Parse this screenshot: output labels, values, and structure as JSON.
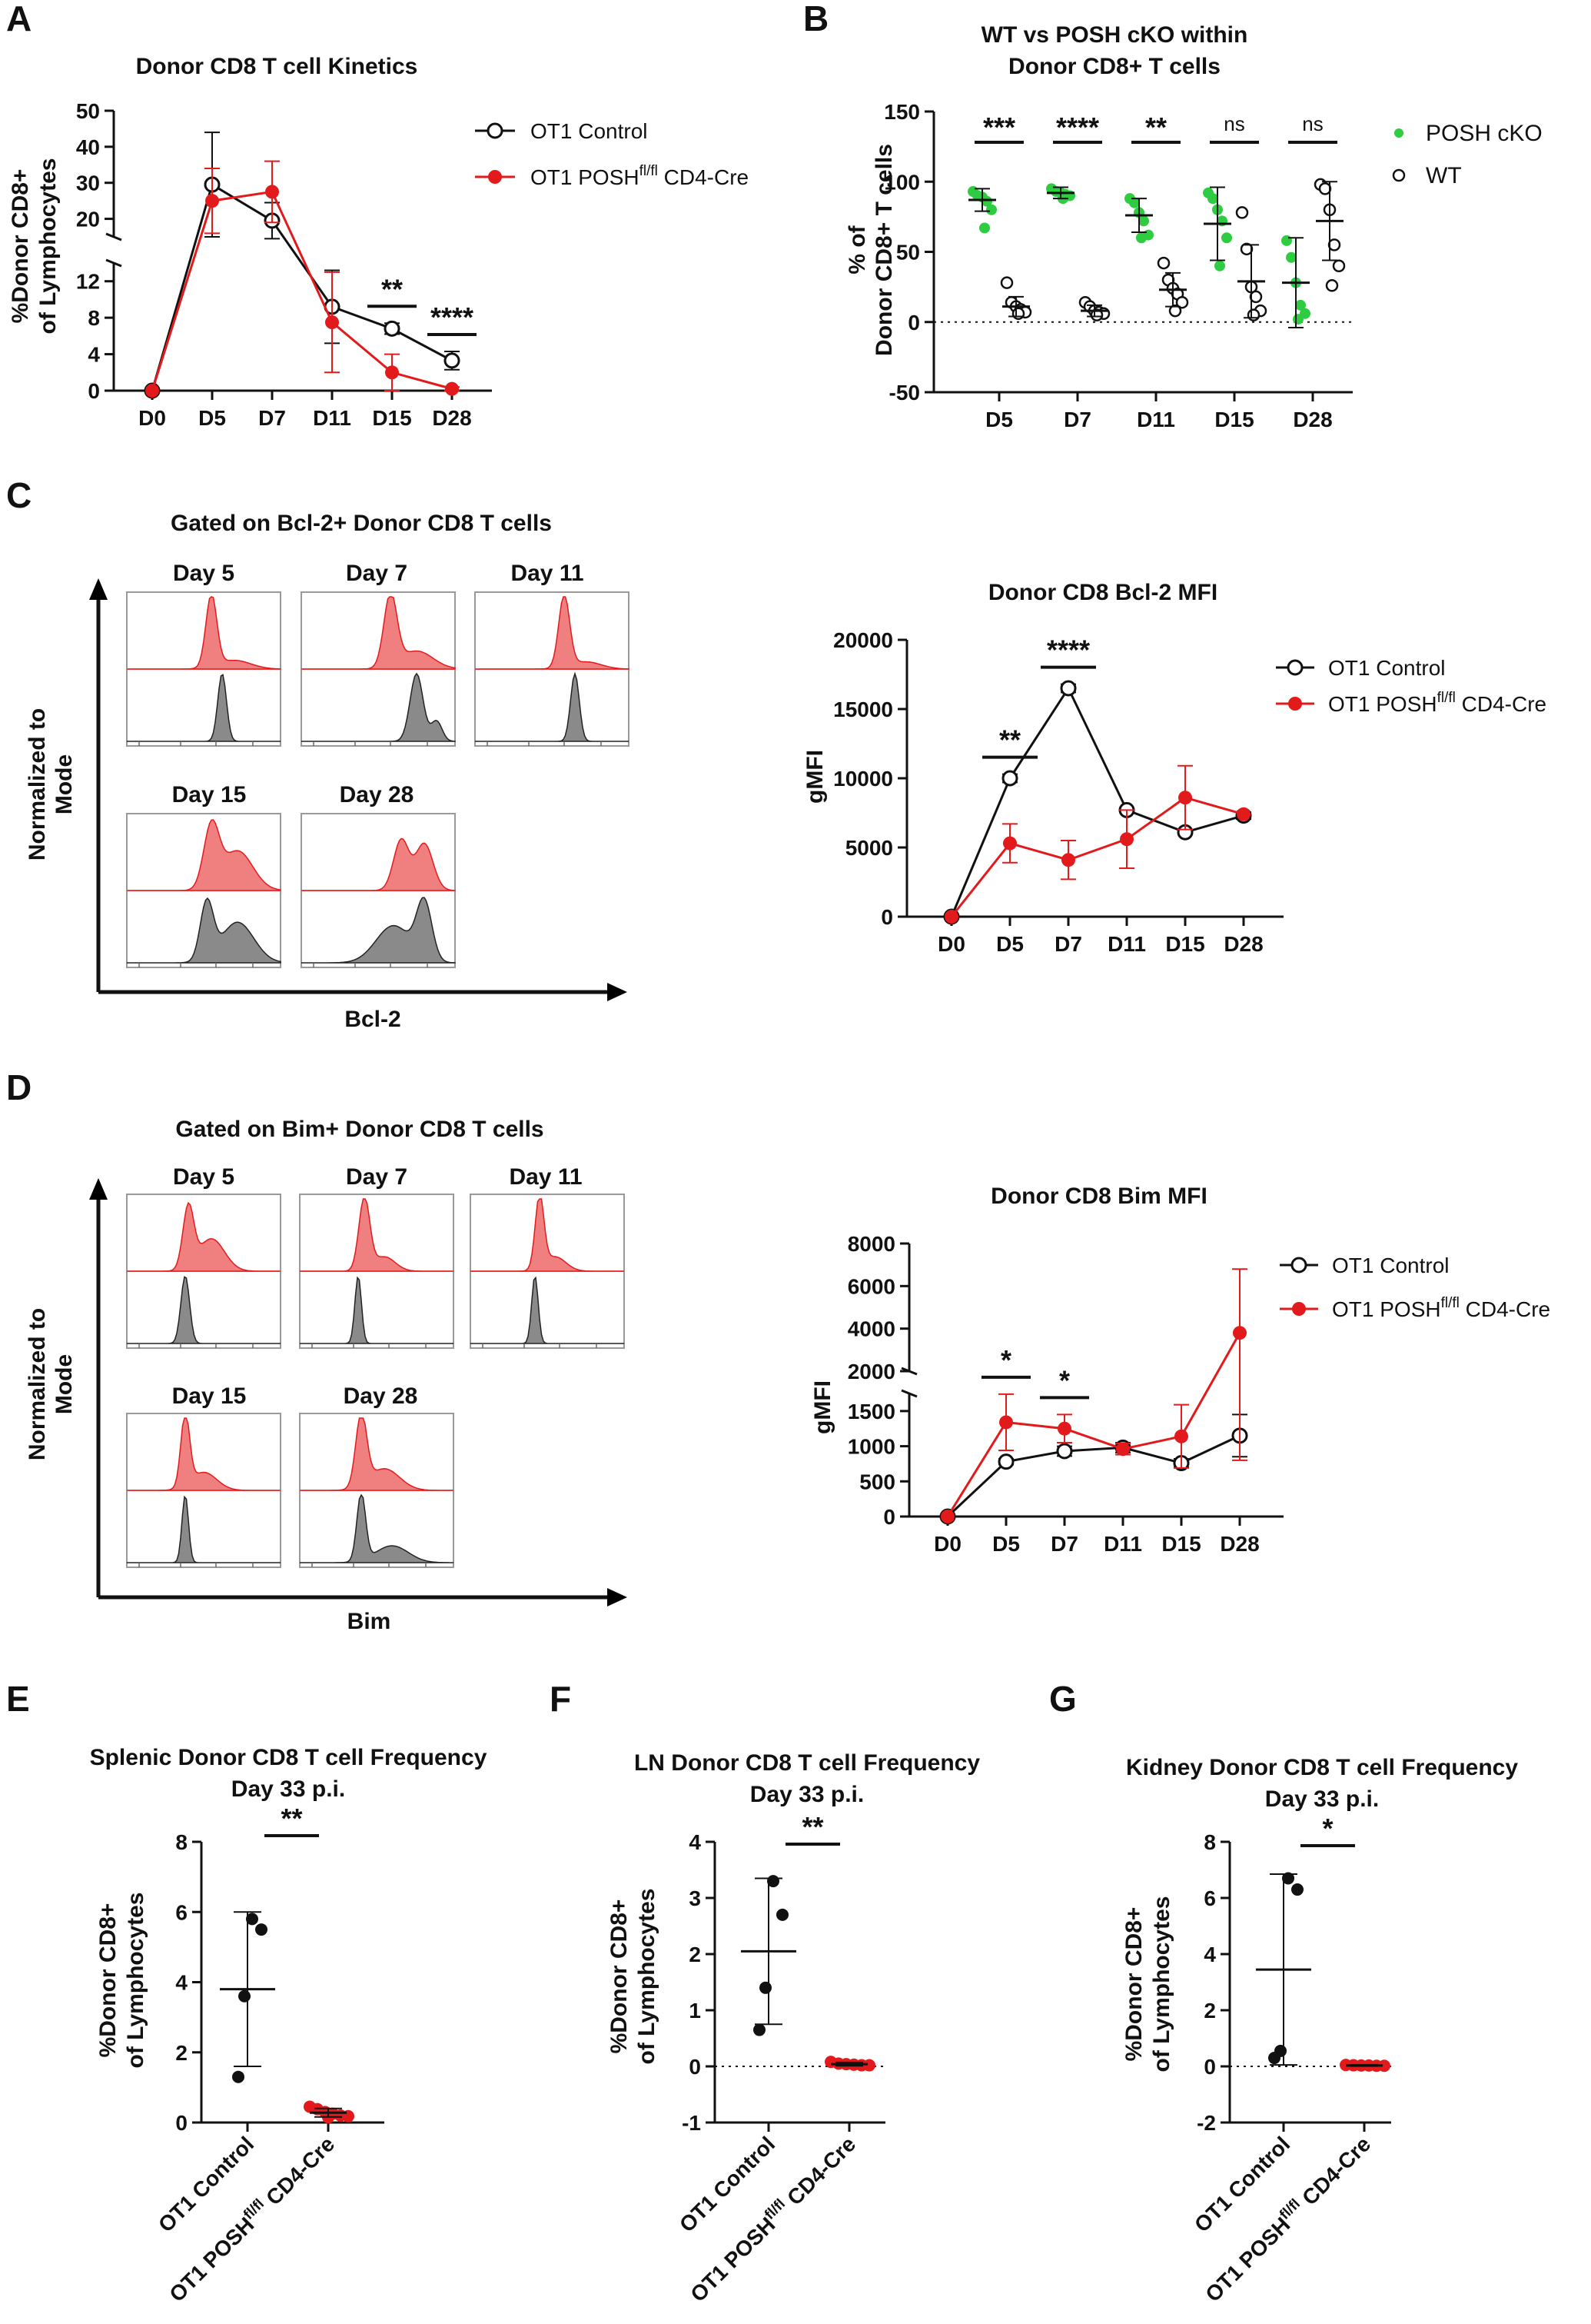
{
  "figure": {
    "panel_letters": [
      "A",
      "B",
      "C",
      "D",
      "E",
      "F",
      "G"
    ],
    "colors": {
      "control": "#111111",
      "posh": "#e31a1c",
      "cko_green": "#2ecc40",
      "fill_red": "#f08080",
      "fill_grey": "#8a8a8a"
    }
  },
  "legend": {
    "control": "OT1 Control",
    "posh_prefix": "OT1 POSH",
    "posh_sup": "fl/fl",
    "posh_suffix": " CD4-Cre",
    "cko": "POSH cKO",
    "wt": "WT"
  },
  "histograms": {
    "c_title": "Gated on Bcl-2+ Donor CD8 T cells",
    "d_title": "Gated on Bim+ Donor CD8 T cells",
    "ylabel_1": "Normalized to",
    "ylabel_2": "Mode",
    "c_xlabel": "Bcl-2",
    "d_xlabel": "Bim",
    "days": [
      "Day 5",
      "Day 7",
      "Day 11",
      "Day 15",
      "Day 28"
    ]
  },
  "chart_data": [
    {
      "panel": "A",
      "type": "line",
      "title": "Donor CD8 T cell Kinetics",
      "ylabel": [
        "%Donor CD8+",
        "of Lymphocytes"
      ],
      "categories": [
        "D0",
        "D5",
        "D7",
        "D11",
        "D15",
        "D28"
      ],
      "y_broken": true,
      "ylim_lower": [
        0,
        14
      ],
      "ylim_upper": [
        15,
        50
      ],
      "yticks_lower": [
        "0",
        "4",
        "8",
        "12"
      ],
      "yticks_upper": [
        "20",
        "30",
        "40",
        "50"
      ],
      "series": [
        {
          "name": "OT1 Control",
          "values": [
            0,
            29.5,
            19.5,
            9.2,
            6.8,
            3.3
          ],
          "err": [
            0,
            14.5,
            5,
            4,
            0.6,
            1
          ]
        },
        {
          "name": "OT1 POSH fl/fl CD4-Cre",
          "values": [
            0,
            25,
            27.5,
            7.5,
            2,
            0.2
          ],
          "err": [
            0,
            9,
            8.5,
            5.5,
            2,
            0.2
          ]
        }
      ],
      "significance": [
        {
          "category": "D15",
          "label": "**"
        },
        {
          "category": "D28",
          "label": "****"
        }
      ]
    },
    {
      "panel": "B",
      "type": "scatter",
      "title": [
        "WT vs POSH cKO within",
        "Donor CD8+ T cells"
      ],
      "ylabel": [
        "% of",
        "Donor CD8+ T cells"
      ],
      "categories": [
        "D5",
        "D7",
        "D11",
        "D15",
        "D28"
      ],
      "ylim": [
        -50,
        150
      ],
      "yticks": [
        "-50",
        "0",
        "50",
        "100",
        "150"
      ],
      "groups": [
        {
          "name": "POSH cKO",
          "mean": [
            87,
            92,
            76,
            70,
            28
          ],
          "sd": [
            8,
            4,
            12,
            26,
            32
          ],
          "points": [
            [
              93,
              90,
              89,
              86,
              80,
              67
            ],
            [
              95,
              93,
              92,
              91,
              90,
              88
            ],
            [
              88,
              85,
              78,
              72,
              62,
              60
            ],
            [
              92,
              88,
              80,
              72,
              60,
              40
            ],
            [
              58,
              46,
              28,
              12,
              6,
              2
            ]
          ]
        },
        {
          "name": "WT",
          "mean": [
            11,
            8,
            23,
            29,
            72
          ],
          "sd": [
            7,
            4,
            12,
            26,
            28
          ],
          "points": [
            [
              28,
              14,
              11,
              9,
              7,
              6
            ],
            [
              14,
              11,
              8,
              7,
              6,
              5
            ],
            [
              42,
              30,
              24,
              20,
              14,
              8
            ],
            [
              78,
              52,
              25,
              18,
              8,
              5
            ],
            [
              98,
              95,
              80,
              55,
              40,
              26
            ]
          ]
        }
      ],
      "significance": [
        "***",
        "****",
        "**",
        "ns",
        "ns"
      ]
    },
    {
      "panel": "C",
      "type": "line",
      "title": "Donor CD8 Bcl-2 MFI",
      "ylabel": "gMFI",
      "categories": [
        "D0",
        "D5",
        "D7",
        "D11",
        "D15",
        "D28"
      ],
      "ylim": [
        0,
        20000
      ],
      "yticks": [
        "0",
        "5000",
        "10000",
        "15000",
        "20000"
      ],
      "series": [
        {
          "name": "OT1 Control",
          "values": [
            0,
            10000,
            16500,
            7700,
            6100,
            7300
          ],
          "err": [
            0,
            300,
            300,
            0,
            0,
            250
          ]
        },
        {
          "name": "OT1 POSH fl/fl CD4-Cre",
          "values": [
            0,
            5300,
            4100,
            5600,
            8600,
            7400
          ],
          "err": [
            0,
            1400,
            1400,
            2100,
            2300,
            0
          ]
        }
      ],
      "significance": [
        {
          "category": "D5",
          "label": "**"
        },
        {
          "category": "D7",
          "label": "****"
        }
      ]
    },
    {
      "panel": "D",
      "type": "line",
      "title": "Donor CD8 Bim MFI",
      "ylabel": "gMFI",
      "categories": [
        "D0",
        "D5",
        "D7",
        "D11",
        "D15",
        "D28"
      ],
      "y_broken": true,
      "ylim_lower": [
        0,
        1750
      ],
      "ylim_upper": [
        2000,
        8000
      ],
      "yticks_lower": [
        "0",
        "500",
        "1000",
        "1500"
      ],
      "yticks_upper": [
        "2000",
        "4000",
        "6000",
        "8000"
      ],
      "series": [
        {
          "name": "OT1 Control",
          "values": [
            0,
            780,
            930,
            980,
            760,
            1150
          ],
          "err": [
            0,
            40,
            70,
            70,
            60,
            300
          ]
        },
        {
          "name": "OT1 POSH fl/fl CD4-Cre",
          "values": [
            0,
            1340,
            1250,
            960,
            1140,
            3800
          ],
          "err": [
            0,
            400,
            200,
            80,
            450,
            3000
          ]
        }
      ],
      "significance": [
        {
          "category": "D5",
          "label": "*"
        },
        {
          "category": "D7",
          "label": "*"
        }
      ]
    },
    {
      "panel": "E",
      "type": "scatter",
      "title": [
        "Splenic Donor CD8 T cell Frequency",
        "Day 33 p.i."
      ],
      "ylabel": [
        "%Donor CD8+",
        "of Lymphocytes"
      ],
      "categories": [
        "OT1 Control",
        "OT1 POSH fl/fl CD4-Cre"
      ],
      "ylim": [
        0,
        8
      ],
      "yticks": [
        "0",
        "2",
        "4",
        "6",
        "8"
      ],
      "groups": [
        {
          "name": "OT1 Control",
          "points": [
            5.8,
            5.5,
            3.6,
            1.3
          ],
          "mean": 3.8,
          "sd": 2.2
        },
        {
          "name": "OT1 POSH fl/fl CD4-Cre",
          "points": [
            0.45,
            0.38,
            0.3,
            0.25,
            0.2,
            0.18,
            0.15
          ],
          "mean": 0.28,
          "sd": 0.12
        }
      ],
      "significance": "**"
    },
    {
      "panel": "F",
      "type": "scatter",
      "title": [
        "LN Donor CD8 T cell Frequency",
        "Day 33 p.i."
      ],
      "ylabel": [
        "%Donor CD8+",
        "of Lymphocytes"
      ],
      "categories": [
        "OT1 Control",
        "OT1 POSH fl/fl CD4-Cre"
      ],
      "ylim": [
        -1,
        4
      ],
      "yticks": [
        "-1",
        "0",
        "1",
        "2",
        "3",
        "4"
      ],
      "groups": [
        {
          "name": "OT1 Control",
          "points": [
            3.3,
            2.7,
            1.4,
            0.65
          ],
          "mean": 2.05,
          "sd": 1.3
        },
        {
          "name": "OT1 POSH fl/fl CD4-Cre",
          "points": [
            0.08,
            0.05,
            0.04,
            0.03,
            0.02,
            0.02
          ],
          "mean": 0.04,
          "sd": 0.03
        }
      ],
      "significance": "**"
    },
    {
      "panel": "G",
      "type": "scatter",
      "title": [
        "Kidney Donor CD8 T cell Frequency",
        "Day 33 p.i."
      ],
      "ylabel": [
        "%Donor CD8+",
        "of Lymphocytes"
      ],
      "categories": [
        "OT1 Control",
        "OT1 POSH fl/fl CD4-Cre"
      ],
      "ylim": [
        -2,
        8
      ],
      "yticks": [
        "-2",
        "0",
        "2",
        "4",
        "6",
        "8"
      ],
      "groups": [
        {
          "name": "OT1 Control",
          "points": [
            6.7,
            6.3,
            0.55,
            0.3
          ],
          "mean": 3.45,
          "sd": 3.4
        },
        {
          "name": "OT1 POSH fl/fl CD4-Cre",
          "points": [
            0.05,
            0.04,
            0.03,
            0.03,
            0.02,
            0.02
          ],
          "mean": 0.03,
          "sd": 0.02
        }
      ],
      "significance": "*"
    }
  ]
}
